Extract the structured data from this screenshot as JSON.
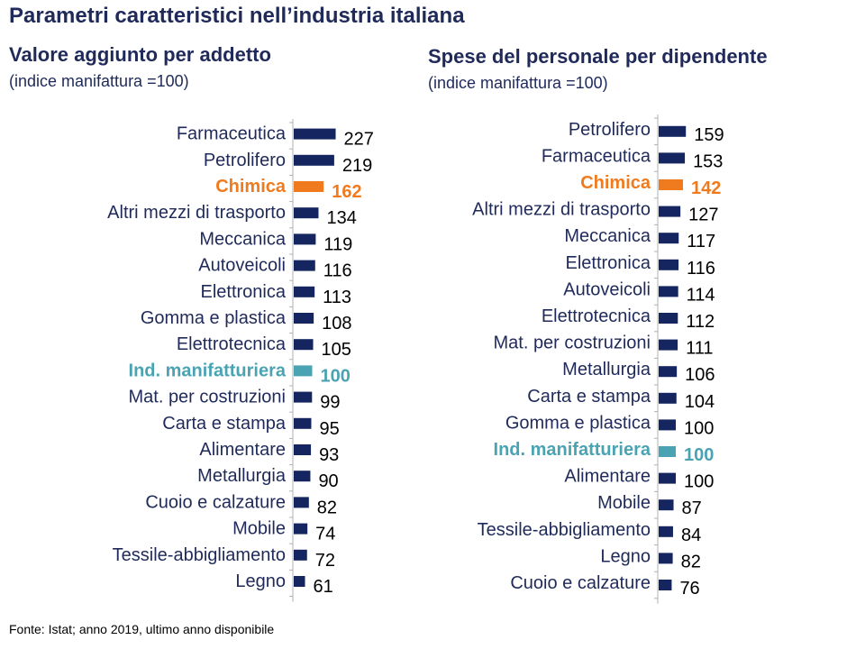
{
  "title": "Parametri caratteristici nell’industria italiana",
  "source": "Fonte: Istat; anno 2019, ultimo anno disponibile",
  "colors": {
    "default": "#14255f",
    "highlight": "#f07b1f",
    "reference": "#4aa3b3"
  },
  "chart_data": [
    {
      "type": "bar",
      "orientation": "horizontal",
      "title": "Valore aggiunto per addetto",
      "subtitle": "(indice manifattura =100)",
      "categories": [
        "Farmaceutica",
        "Petrolifero",
        "Chimica",
        "Altri mezzi di trasporto",
        "Meccanica",
        "Autoveicoli",
        "Elettronica",
        "Gomma e plastica",
        "Elettrotecnica",
        "Ind. manifatturiera",
        "Mat. per costruzioni",
        "Carta e stampa",
        "Alimentare",
        "Metallurgia",
        "Cuoio e calzature",
        "Mobile",
        "Tessile-abbigliamento",
        "Legno"
      ],
      "values": [
        227,
        219,
        162,
        134,
        119,
        116,
        113,
        108,
        105,
        100,
        99,
        95,
        93,
        90,
        82,
        74,
        72,
        61
      ],
      "highlight": [
        "none",
        "none",
        "highlight",
        "none",
        "none",
        "none",
        "none",
        "none",
        "none",
        "reference",
        "none",
        "none",
        "none",
        "none",
        "none",
        "none",
        "none",
        "none"
      ]
    },
    {
      "type": "bar",
      "orientation": "horizontal",
      "title": "Spese del personale per dipendente",
      "subtitle": "(indice manifattura =100)",
      "categories": [
        "Petrolifero",
        "Farmaceutica",
        "Chimica",
        "Altri mezzi di trasporto",
        "Meccanica",
        "Elettronica",
        "Autoveicoli",
        "Elettrotecnica",
        "Mat. per costruzioni",
        "Metallurgia",
        "Carta e stampa",
        "Gomma e plastica",
        "Ind. manifatturiera",
        "Alimentare",
        "Mobile",
        "Tessile-abbigliamento",
        "Legno",
        "Cuoio e calzature"
      ],
      "values": [
        159,
        153,
        142,
        127,
        117,
        116,
        114,
        112,
        111,
        106,
        104,
        100,
        100,
        100,
        87,
        84,
        82,
        76
      ],
      "highlight": [
        "none",
        "none",
        "highlight",
        "none",
        "none",
        "none",
        "none",
        "none",
        "none",
        "none",
        "none",
        "none",
        "reference",
        "none",
        "none",
        "none",
        "none",
        "none"
      ]
    }
  ]
}
